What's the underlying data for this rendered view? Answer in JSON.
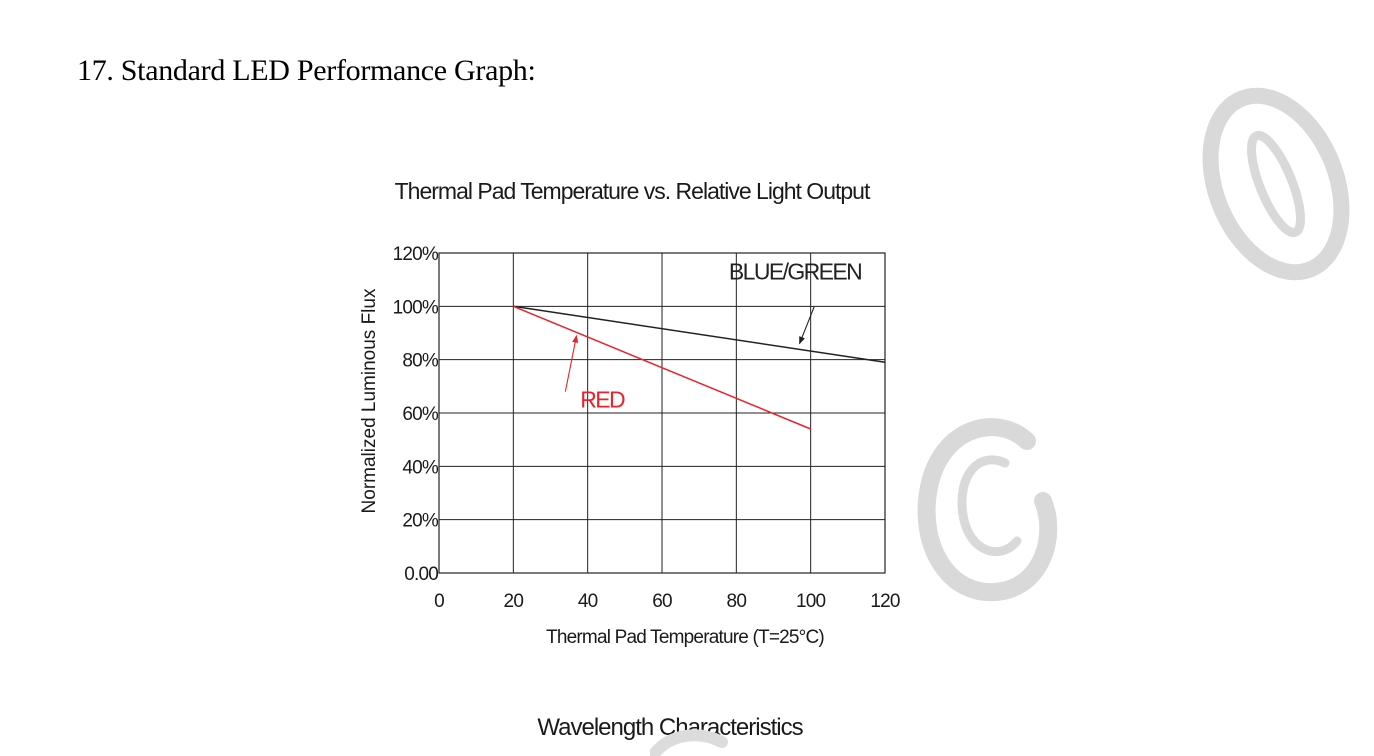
{
  "document": {
    "section_heading": "17. Standard LED Performance Graph:",
    "next_heading": "Wavelength Characteristics"
  },
  "colors": {
    "red_series": "#e8232a",
    "blue_green_series": "#222222",
    "grid": "#222222",
    "watermark": "#d9d9d9"
  },
  "chart_data": {
    "type": "line",
    "title": "Thermal Pad Temperature vs. Relative Light Output",
    "xlabel": "Thermal Pad Temperature (T=25°C)",
    "ylabel": "Normalized Luminous Flux",
    "xlim": [
      0,
      120
    ],
    "ylim": [
      0,
      120
    ],
    "x_ticks": [
      0,
      20,
      40,
      60,
      80,
      100,
      120
    ],
    "x_tick_labels": [
      "0",
      "20",
      "40",
      "60",
      "80",
      "100",
      "120"
    ],
    "y_ticks": [
      0,
      20,
      40,
      60,
      80,
      100,
      120
    ],
    "y_tick_labels": [
      "0.00",
      "20%",
      "40%",
      "60%",
      "80%",
      "100%",
      "120%"
    ],
    "grid": true,
    "legend": "none",
    "series": [
      {
        "name": "BLUE/GREEN",
        "color": "#222222",
        "x": [
          20,
          120
        ],
        "y": [
          100,
          79
        ]
      },
      {
        "name": "RED",
        "color": "#e8232a",
        "x": [
          20,
          100
        ],
        "y": [
          100,
          54
        ]
      }
    ],
    "annotations": [
      {
        "text": "BLUE/GREEN",
        "series": 0,
        "color": "#222222",
        "label_at": [
          78,
          110
        ],
        "arrow_from": [
          101,
          100
        ],
        "arrow_to": [
          97,
          86
        ]
      },
      {
        "text": "RED",
        "series": 1,
        "color": "#e8232a",
        "label_at": [
          38,
          62
        ],
        "arrow_from": [
          34,
          68
        ],
        "arrow_to": [
          37,
          89
        ]
      }
    ]
  }
}
